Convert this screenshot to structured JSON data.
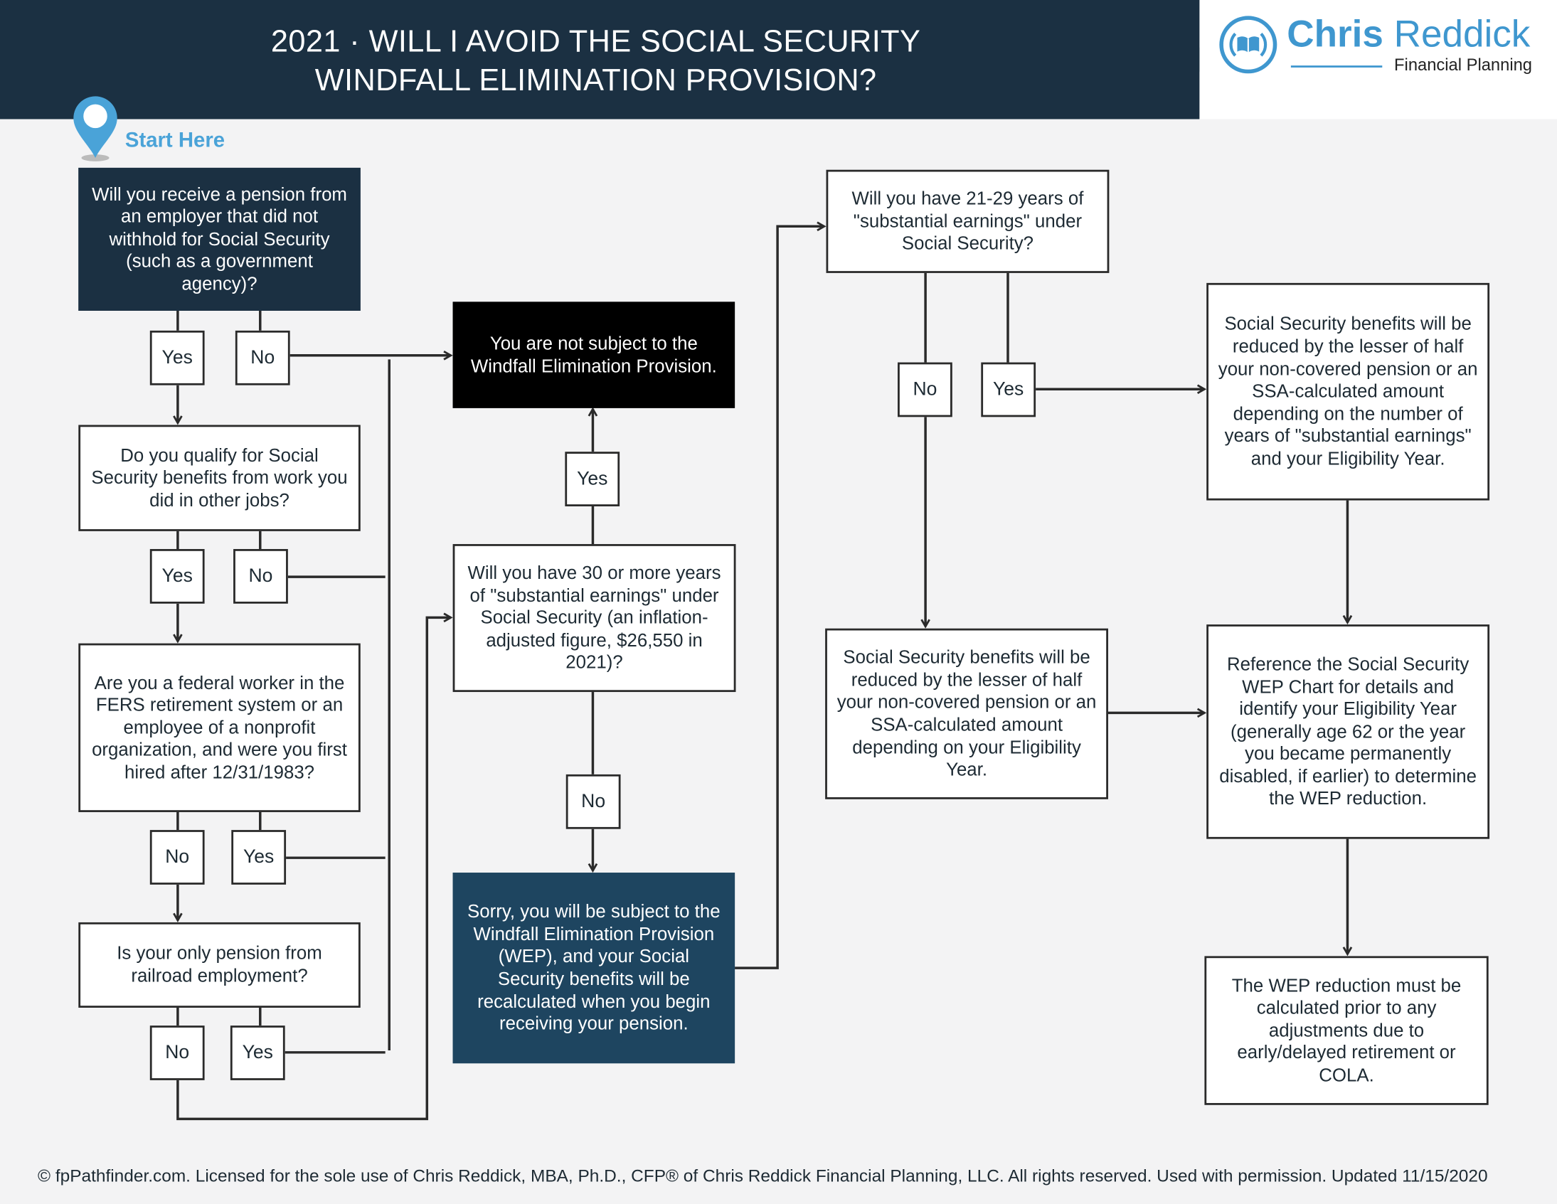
{
  "header": {
    "title_line1": "2021 · WILL I AVOID THE SOCIAL SECURITY",
    "title_line2": "WINDFALL ELIMINATION PROVISION?"
  },
  "logo": {
    "name_bold": "Chris",
    "name_light": "Reddick",
    "tagline": "Financial Planning",
    "icon": "book-in-circle-icon",
    "color": "#3f97cf"
  },
  "start_label": "Start Here",
  "colors": {
    "header": "#1b3042",
    "accent": "#4aa3d8",
    "navy_box": "#1e4560",
    "black_box": "#000000"
  },
  "nodes": {
    "q1": "Will you receive a pension from an employer that did not withhold for Social Security (such as a government agency)?",
    "q2": "Do you qualify for Social Security benefits from work you did in other jobs?",
    "q3": "Are you a federal worker in the FERS retirement system or an employee of a nonprofit organization, and were you first hired after 12/31/1983?",
    "q4": "Is your only pension from railroad employment?",
    "not_subject": "You are not subject to the Windfall Elimination Provision.",
    "q5": "Will you have 30 or more years of \"substantial earnings\" under Social Security (an inflation-adjusted figure, $26,550 in 2021)?",
    "sorry": "Sorry, you will be subject to the Windfall Elimination Provision (WEP), and your Social Security benefits will be recalculated when you begin receiving your pension.",
    "q6": "Will you have 21-29 years of \"substantial earnings\" under Social Security?",
    "result_years": "Social Security benefits will be reduced by the lesser of half your non-covered pension or an SSA-calculated amount depending on the number of years of \"substantial earnings\" and your Eligibility Year.",
    "result_eligibility": "Social Security benefits will be reduced by the lesser of half your non-covered pension or an SSA-calculated amount depending on your Eligibility Year.",
    "reference": "Reference the Social Security WEP Chart for details and identify your Eligibility Year (generally age 62 or the year you became permanently disabled, if earlier) to determine the WEP reduction.",
    "final": "The WEP reduction must be calculated prior to any adjustments due to early/delayed retirement or COLA."
  },
  "answers": {
    "yes": "Yes",
    "no": "No"
  },
  "footer": "© fpPathfinder.com. Licensed for the sole use of Chris Reddick, MBA, Ph.D., CFP® of Chris Reddick Financial Planning, LLC. All rights reserved. Used with permission. Updated 11/15/2020"
}
